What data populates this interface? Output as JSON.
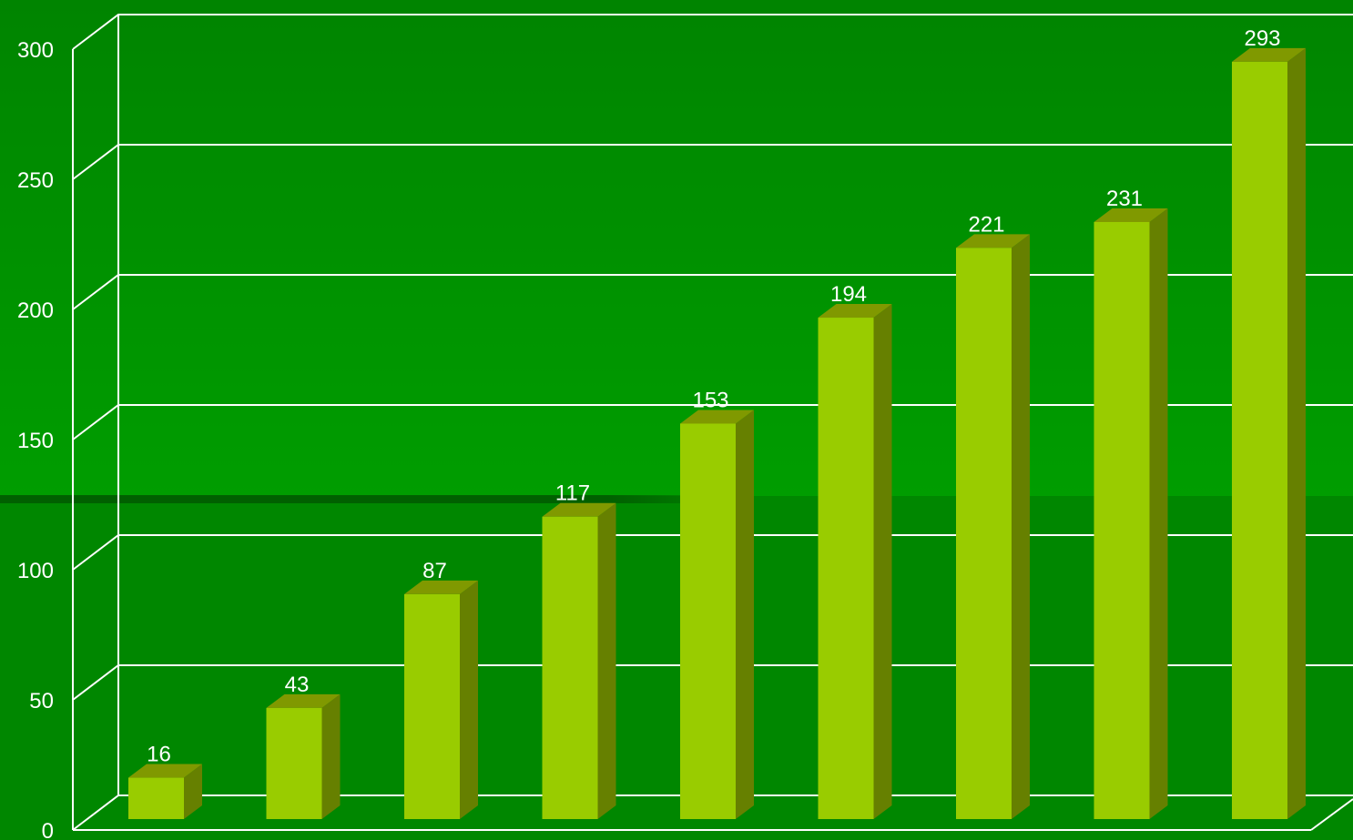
{
  "chart_data": {
    "type": "bar",
    "style": "3d",
    "categories": [
      "",
      "",
      "",
      "",
      "",
      "",
      "",
      "",
      ""
    ],
    "values": [
      16,
      43,
      87,
      117,
      153,
      194,
      221,
      231,
      293
    ],
    "ylim": [
      0,
      300
    ],
    "yticks": [
      0,
      50,
      100,
      150,
      200,
      250,
      300
    ],
    "title": "",
    "xlabel": "",
    "ylabel": "",
    "grid": true,
    "legend": "none",
    "colors": {
      "background_top": "#008400",
      "background_mid": "#009d00",
      "background_bottom": "#008700",
      "band_shadow": "#005c00",
      "gridline": "#ffffff",
      "bar_front": "#99cc00",
      "bar_side": "#668000",
      "bar_top": "#809900",
      "text": "#ffffff"
    }
  }
}
